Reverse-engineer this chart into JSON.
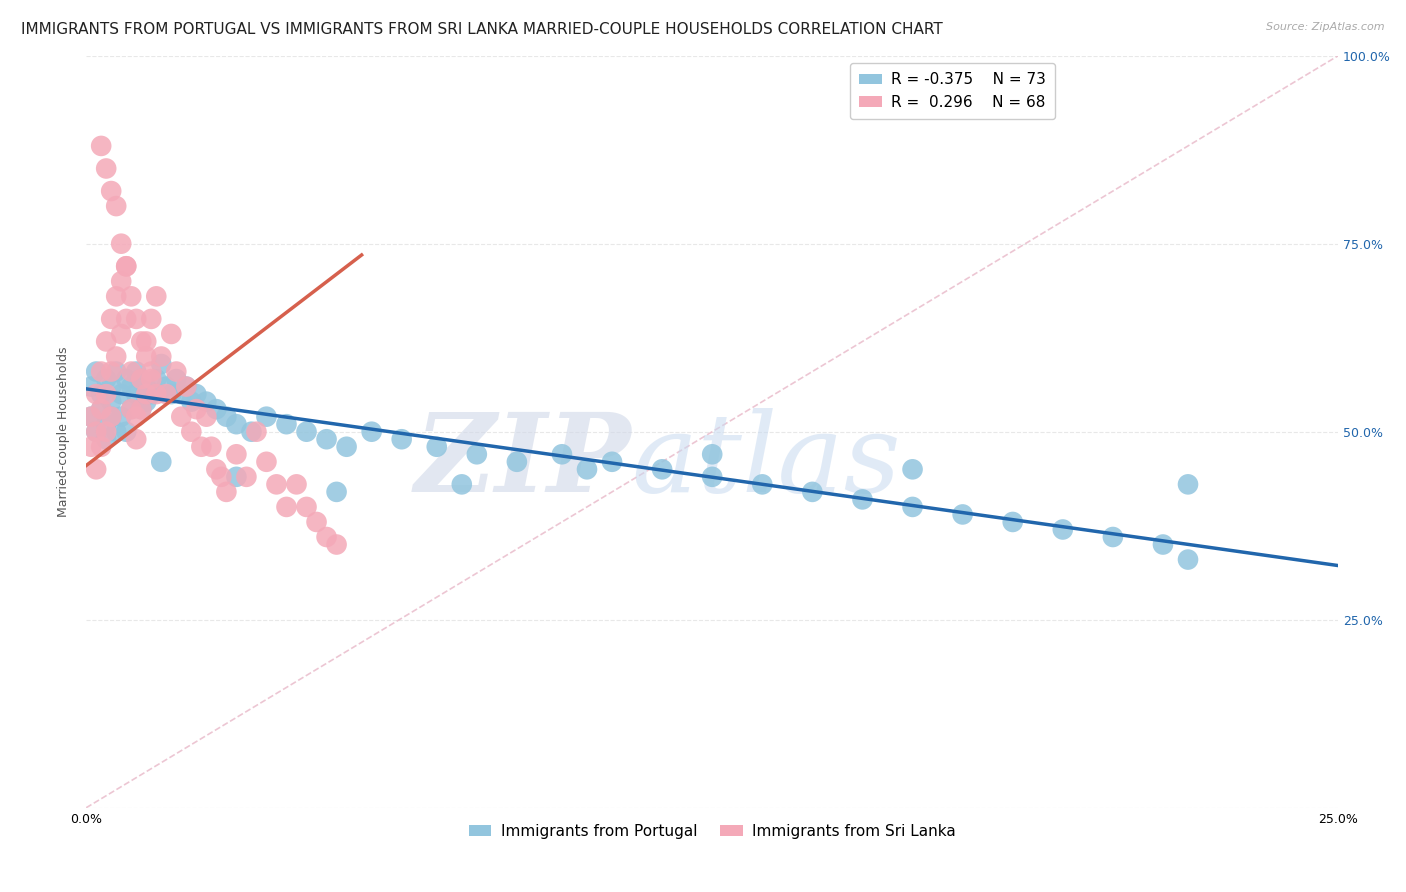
{
  "title": "IMMIGRANTS FROM PORTUGAL VS IMMIGRANTS FROM SRI LANKA MARRIED-COUPLE HOUSEHOLDS CORRELATION CHART",
  "source": "Source: ZipAtlas.com",
  "ylabel": "Married-couple Households",
  "xlim": [
    0.0,
    0.25
  ],
  "ylim": [
    0.0,
    1.0
  ],
  "xtick_vals": [
    0.0,
    0.05,
    0.1,
    0.15,
    0.2,
    0.25
  ],
  "xtick_labels": [
    "0.0%",
    "",
    "",
    "",
    "",
    "25.0%"
  ],
  "ytick_vals": [
    0.0,
    0.25,
    0.5,
    0.75,
    1.0
  ],
  "ytick_labels_right": [
    "",
    "25.0%",
    "50.0%",
    "75.0%",
    "100.0%"
  ],
  "portugal_color": "#92c5de",
  "srilanka_color": "#f4a9b8",
  "portugal_line_color": "#2166ac",
  "srilanka_line_color": "#d6604d",
  "portugal_R": -0.375,
  "portugal_N": 73,
  "srilanka_R": 0.296,
  "srilanka_N": 68,
  "background_color": "#ffffff",
  "grid_color": "#e8e8e8",
  "title_fontsize": 11,
  "axis_fontsize": 9,
  "tick_fontsize": 9,
  "legend_fontsize": 11,
  "source_fontsize": 8,
  "portugal_x": [
    0.001,
    0.001,
    0.002,
    0.002,
    0.003,
    0.003,
    0.004,
    0.004,
    0.004,
    0.005,
    0.005,
    0.005,
    0.006,
    0.006,
    0.007,
    0.007,
    0.008,
    0.008,
    0.009,
    0.009,
    0.01,
    0.01,
    0.011,
    0.011,
    0.012,
    0.012,
    0.013,
    0.014,
    0.015,
    0.016,
    0.017,
    0.018,
    0.019,
    0.02,
    0.021,
    0.022,
    0.024,
    0.026,
    0.028,
    0.03,
    0.033,
    0.036,
    0.04,
    0.044,
    0.048,
    0.052,
    0.057,
    0.063,
    0.07,
    0.078,
    0.086,
    0.095,
    0.105,
    0.115,
    0.125,
    0.135,
    0.145,
    0.155,
    0.165,
    0.175,
    0.185,
    0.195,
    0.205,
    0.215,
    0.22,
    0.22,
    0.165,
    0.125,
    0.1,
    0.075,
    0.05,
    0.03,
    0.015
  ],
  "portugal_y": [
    0.56,
    0.52,
    0.58,
    0.5,
    0.55,
    0.53,
    0.57,
    0.51,
    0.49,
    0.56,
    0.54,
    0.52,
    0.58,
    0.5,
    0.55,
    0.52,
    0.57,
    0.5,
    0.56,
    0.53,
    0.58,
    0.55,
    0.57,
    0.53,
    0.56,
    0.54,
    0.55,
    0.57,
    0.59,
    0.56,
    0.55,
    0.57,
    0.55,
    0.56,
    0.54,
    0.55,
    0.54,
    0.53,
    0.52,
    0.51,
    0.5,
    0.52,
    0.51,
    0.5,
    0.49,
    0.48,
    0.5,
    0.49,
    0.48,
    0.47,
    0.46,
    0.47,
    0.46,
    0.45,
    0.44,
    0.43,
    0.42,
    0.41,
    0.4,
    0.39,
    0.38,
    0.37,
    0.36,
    0.35,
    0.33,
    0.43,
    0.45,
    0.47,
    0.45,
    0.43,
    0.42,
    0.44,
    0.46
  ],
  "srilanka_x": [
    0.001,
    0.001,
    0.002,
    0.002,
    0.002,
    0.003,
    0.003,
    0.003,
    0.004,
    0.004,
    0.004,
    0.005,
    0.005,
    0.005,
    0.006,
    0.006,
    0.007,
    0.007,
    0.008,
    0.008,
    0.009,
    0.009,
    0.01,
    0.01,
    0.011,
    0.011,
    0.012,
    0.012,
    0.013,
    0.013,
    0.014,
    0.015,
    0.016,
    0.017,
    0.018,
    0.019,
    0.02,
    0.021,
    0.022,
    0.023,
    0.024,
    0.025,
    0.026,
    0.027,
    0.028,
    0.03,
    0.032,
    0.034,
    0.036,
    0.038,
    0.04,
    0.042,
    0.044,
    0.046,
    0.048,
    0.05,
    0.003,
    0.004,
    0.005,
    0.006,
    0.007,
    0.008,
    0.009,
    0.01,
    0.011,
    0.012,
    0.013,
    0.014
  ],
  "srilanka_y": [
    0.52,
    0.48,
    0.55,
    0.5,
    0.45,
    0.58,
    0.53,
    0.48,
    0.62,
    0.55,
    0.5,
    0.65,
    0.58,
    0.52,
    0.68,
    0.6,
    0.7,
    0.63,
    0.72,
    0.65,
    0.58,
    0.53,
    0.52,
    0.49,
    0.57,
    0.53,
    0.62,
    0.55,
    0.65,
    0.58,
    0.68,
    0.6,
    0.55,
    0.63,
    0.58,
    0.52,
    0.56,
    0.5,
    0.53,
    0.48,
    0.52,
    0.48,
    0.45,
    0.44,
    0.42,
    0.47,
    0.44,
    0.5,
    0.46,
    0.43,
    0.4,
    0.43,
    0.4,
    0.38,
    0.36,
    0.35,
    0.88,
    0.85,
    0.82,
    0.8,
    0.75,
    0.72,
    0.68,
    0.65,
    0.62,
    0.6,
    0.57,
    0.55
  ],
  "portugal_line_x": [
    0.0,
    0.25
  ],
  "portugal_line_y": [
    0.557,
    0.322
  ],
  "srilanka_line_x": [
    0.0,
    0.055
  ],
  "srilanka_line_y": [
    0.455,
    0.735
  ]
}
